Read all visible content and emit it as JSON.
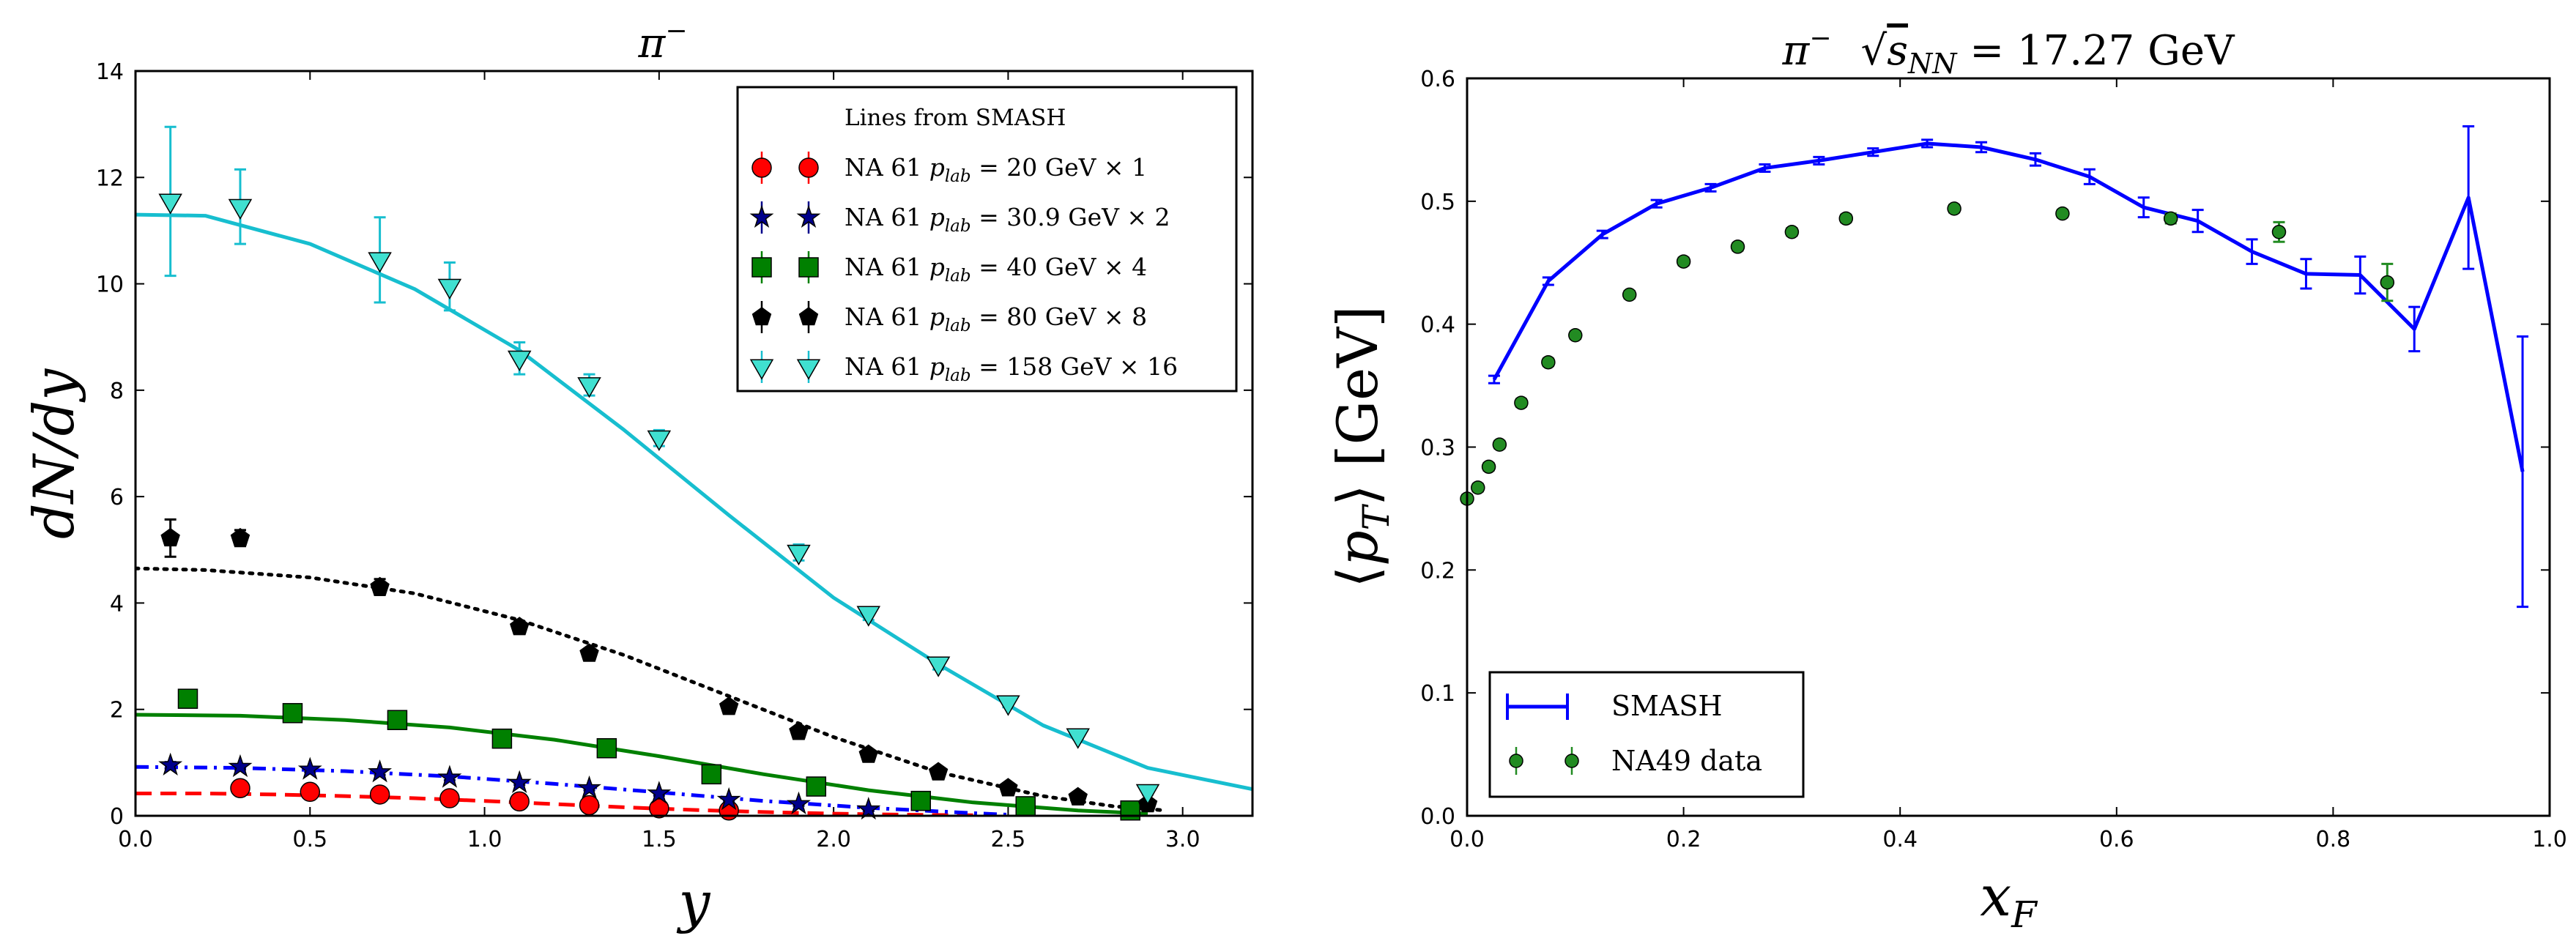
{
  "chart_data": [
    {
      "type": "scatter",
      "title": "π⁻",
      "xlabel": "y",
      "ylabel": "dN/dy",
      "xlim": [
        0,
        3.2
      ],
      "ylim": [
        0,
        14
      ],
      "xticks": [
        "0.0",
        "0.5",
        "1.0",
        "1.5",
        "2.0",
        "2.5",
        "3.0"
      ],
      "yticks": [
        "0",
        "2",
        "4",
        "6",
        "8",
        "10",
        "12",
        "14"
      ],
      "legend": {
        "position": "top-right",
        "header": "Lines from SMASH",
        "entries": [
          "NA 61 p_lab = 20 GeV × 1",
          "NA 61 p_lab = 30.9 GeV × 2",
          "NA 61 p_lab = 40 GeV × 4",
          "NA 61 p_lab = 80 GeV × 8",
          "NA 61 p_lab = 158 GeV × 16"
        ]
      },
      "series": [
        {
          "name": "NA 61 p_lab = 20 GeV × 1",
          "color": "#ff0000",
          "marker": "circle",
          "points": [
            [
              0.3,
              0.52
            ],
            [
              0.5,
              0.45
            ],
            [
              0.7,
              0.4
            ],
            [
              0.9,
              0.33
            ],
            [
              1.1,
              0.27
            ],
            [
              1.3,
              0.2
            ],
            [
              1.5,
              0.14
            ],
            [
              1.7,
              0.1
            ]
          ],
          "errors": [
            0.03,
            0.03,
            0.03,
            0.02,
            0.02,
            0.02,
            0.02,
            0.02
          ],
          "line": [
            [
              0.0,
              0.42
            ],
            [
              0.2,
              0.42
            ],
            [
              0.4,
              0.4
            ],
            [
              0.6,
              0.37
            ],
            [
              0.8,
              0.33
            ],
            [
              1.0,
              0.28
            ],
            [
              1.2,
              0.22
            ],
            [
              1.4,
              0.16
            ],
            [
              1.6,
              0.11
            ],
            [
              1.8,
              0.07
            ],
            [
              2.0,
              0.04
            ],
            [
              2.2,
              0.02
            ],
            [
              2.4,
              0.01
            ]
          ],
          "linestyle": "dashed"
        },
        {
          "name": "NA 61 p_lab = 30.9 GeV × 2",
          "color": "#00008b",
          "marker": "star",
          "points": [
            [
              0.1,
              0.95
            ],
            [
              0.3,
              0.92
            ],
            [
              0.5,
              0.87
            ],
            [
              0.7,
              0.82
            ],
            [
              0.9,
              0.72
            ],
            [
              1.1,
              0.62
            ],
            [
              1.3,
              0.52
            ],
            [
              1.5,
              0.42
            ],
            [
              1.7,
              0.3
            ],
            [
              1.9,
              0.22
            ],
            [
              2.1,
              0.12
            ]
          ],
          "errors": [
            0.06,
            0.05,
            0.05,
            0.05,
            0.05,
            0.04,
            0.04,
            0.04,
            0.03,
            0.03,
            0.03
          ],
          "line": [
            [
              0.0,
              0.92
            ],
            [
              0.3,
              0.9
            ],
            [
              0.6,
              0.84
            ],
            [
              0.9,
              0.74
            ],
            [
              1.2,
              0.6
            ],
            [
              1.5,
              0.44
            ],
            [
              1.8,
              0.28
            ],
            [
              2.1,
              0.15
            ],
            [
              2.4,
              0.05
            ],
            [
              2.5,
              0.02
            ]
          ],
          "linestyle": "dashdot",
          "linecolor": "#0000ff"
        },
        {
          "name": "NA 61 p_lab = 40 GeV × 4",
          "color": "#008000",
          "marker": "square",
          "points": [
            [
              0.15,
              2.2
            ],
            [
              0.45,
              1.93
            ],
            [
              0.75,
              1.8
            ],
            [
              1.05,
              1.45
            ],
            [
              1.35,
              1.27
            ],
            [
              1.65,
              0.78
            ],
            [
              1.95,
              0.55
            ],
            [
              2.25,
              0.28
            ],
            [
              2.55,
              0.18
            ],
            [
              2.85,
              0.1
            ]
          ],
          "errors": [
            0.05,
            0.05,
            0.05,
            0.05,
            0.05,
            0.04,
            0.04,
            0.03,
            0.03,
            0.03
          ],
          "line": [
            [
              0.0,
              1.9
            ],
            [
              0.3,
              1.88
            ],
            [
              0.6,
              1.8
            ],
            [
              0.9,
              1.66
            ],
            [
              1.2,
              1.43
            ],
            [
              1.5,
              1.12
            ],
            [
              1.8,
              0.78
            ],
            [
              2.1,
              0.48
            ],
            [
              2.4,
              0.25
            ],
            [
              2.7,
              0.1
            ],
            [
              2.9,
              0.04
            ]
          ],
          "linestyle": "solid"
        },
        {
          "name": "NA 61 p_lab = 80 GeV × 8",
          "color": "#000000",
          "marker": "pentagon",
          "points": [
            [
              0.1,
              5.22
            ],
            [
              0.3,
              5.22
            ],
            [
              0.7,
              4.3
            ],
            [
              1.1,
              3.55
            ],
            [
              1.3,
              3.05
            ],
            [
              1.7,
              2.05
            ],
            [
              1.9,
              1.58
            ],
            [
              2.1,
              1.15
            ],
            [
              2.3,
              0.82
            ],
            [
              2.5,
              0.52
            ],
            [
              2.7,
              0.35
            ],
            [
              2.9,
              0.22
            ]
          ],
          "errors": [
            0.35,
            0.15,
            0.15,
            0.1,
            0.08,
            0.07,
            0.06,
            0.05,
            0.04,
            0.04,
            0.03,
            0.03
          ],
          "line": [
            [
              0.0,
              4.65
            ],
            [
              0.2,
              4.62
            ],
            [
              0.5,
              4.48
            ],
            [
              0.8,
              4.18
            ],
            [
              1.1,
              3.68
            ],
            [
              1.4,
              3.02
            ],
            [
              1.7,
              2.25
            ],
            [
              2.0,
              1.48
            ],
            [
              2.3,
              0.82
            ],
            [
              2.6,
              0.37
            ],
            [
              2.8,
              0.18
            ],
            [
              2.95,
              0.1
            ]
          ],
          "linestyle": "dotted"
        },
        {
          "name": "NA 61 p_lab = 158 GeV × 16",
          "color": "#40e0d0",
          "marker": "triangle-down",
          "points": [
            [
              0.1,
              11.55
            ],
            [
              0.3,
              11.45
            ],
            [
              0.7,
              10.45
            ],
            [
              0.9,
              9.95
            ],
            [
              1.1,
              8.6
            ],
            [
              1.3,
              8.1
            ],
            [
              1.5,
              7.1
            ],
            [
              1.9,
              4.95
            ],
            [
              2.1,
              3.8
            ],
            [
              2.3,
              2.85
            ],
            [
              2.5,
              2.12
            ],
            [
              2.7,
              1.5
            ],
            [
              2.9,
              0.45
            ]
          ],
          "errors": [
            1.4,
            0.7,
            0.8,
            0.45,
            0.3,
            0.2,
            0.15,
            0.15,
            0.12,
            0.1,
            0.08,
            0.06,
            0.05
          ],
          "line": [
            [
              0.0,
              11.3
            ],
            [
              0.2,
              11.28
            ],
            [
              0.5,
              10.75
            ],
            [
              0.8,
              9.9
            ],
            [
              1.1,
              8.75
            ],
            [
              1.4,
              7.25
            ],
            [
              1.7,
              5.65
            ],
            [
              2.0,
              4.1
            ],
            [
              2.3,
              2.85
            ],
            [
              2.6,
              1.7
            ],
            [
              2.9,
              0.9
            ],
            [
              3.2,
              0.5
            ]
          ],
          "linestyle": "solid",
          "linecolor": "#17becf"
        }
      ]
    },
    {
      "type": "line",
      "title": "π⁻  √s_NN = 17.27 GeV",
      "xlabel": "x_F",
      "ylabel": "⟨p_T⟩ [GeV]",
      "xlim": [
        0,
        1
      ],
      "ylim": [
        0,
        0.6
      ],
      "xticks": [
        "0.0",
        "0.2",
        "0.4",
        "0.6",
        "0.8",
        "1.0"
      ],
      "yticks": [
        "0.0",
        "0.1",
        "0.2",
        "0.3",
        "0.4",
        "0.5",
        "0.6"
      ],
      "legend": {
        "position": "bottom-left",
        "entries": [
          "SMASH",
          "NA49 data"
        ]
      },
      "series": [
        {
          "name": "SMASH",
          "color": "#0000ff",
          "points": [
            [
              0.025,
              0.355
            ],
            [
              0.075,
              0.435
            ],
            [
              0.125,
              0.473
            ],
            [
              0.175,
              0.498
            ],
            [
              0.225,
              0.511
            ],
            [
              0.275,
              0.527
            ],
            [
              0.325,
              0.533
            ],
            [
              0.375,
              0.54
            ],
            [
              0.425,
              0.547
            ],
            [
              0.475,
              0.544
            ],
            [
              0.525,
              0.534
            ],
            [
              0.575,
              0.52
            ],
            [
              0.625,
              0.495
            ],
            [
              0.675,
              0.484
            ],
            [
              0.725,
              0.459
            ],
            [
              0.775,
              0.441
            ],
            [
              0.825,
              0.44
            ],
            [
              0.875,
              0.396
            ],
            [
              0.925,
              0.503
            ],
            [
              0.975,
              0.28
            ]
          ],
          "errors": [
            0.003,
            0.003,
            0.003,
            0.003,
            0.003,
            0.003,
            0.003,
            0.003,
            0.003,
            0.004,
            0.005,
            0.006,
            0.008,
            0.009,
            0.01,
            0.012,
            0.015,
            0.018,
            0.058,
            0.11
          ]
        },
        {
          "name": "NA49 data",
          "color": "#228b22",
          "marker": "circle",
          "points": [
            [
              0.0,
              0.258
            ],
            [
              0.01,
              0.267
            ],
            [
              0.02,
              0.284
            ],
            [
              0.03,
              0.302
            ],
            [
              0.05,
              0.336
            ],
            [
              0.075,
              0.369
            ],
            [
              0.1,
              0.391
            ],
            [
              0.15,
              0.424
            ],
            [
              0.2,
              0.451
            ],
            [
              0.25,
              0.463
            ],
            [
              0.3,
              0.475
            ],
            [
              0.35,
              0.486
            ],
            [
              0.45,
              0.494
            ],
            [
              0.55,
              0.49
            ],
            [
              0.65,
              0.486
            ],
            [
              0.75,
              0.475
            ],
            [
              0.85,
              0.434
            ]
          ],
          "errors": [
            0.003,
            0.003,
            0.003,
            0.003,
            0.003,
            0.003,
            0.003,
            0.003,
            0.003,
            0.003,
            0.003,
            0.003,
            0.003,
            0.003,
            0.004,
            0.008,
            0.015
          ]
        }
      ]
    }
  ]
}
